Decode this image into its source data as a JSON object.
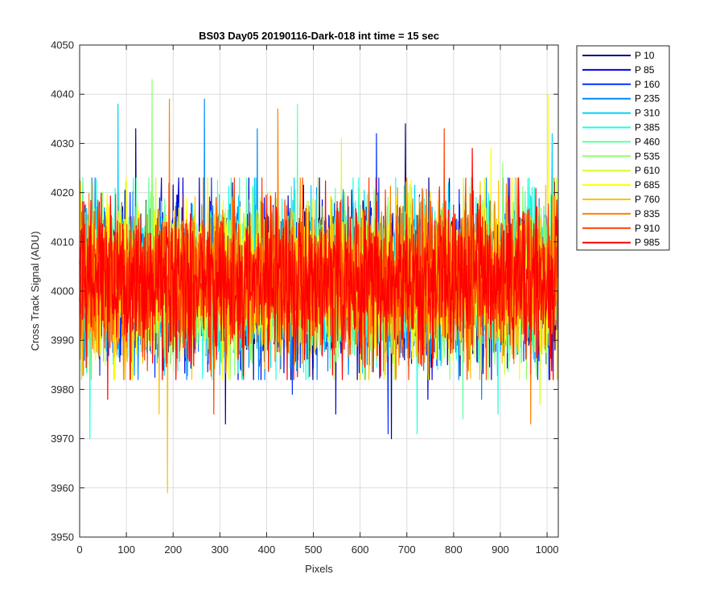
{
  "chart_data": {
    "type": "line",
    "title": "BS03 Day05 20190116-Dark-018 int time = 15 sec",
    "xlabel": "Pixels",
    "ylabel": "Cross Track Signal (ADU)",
    "xlim": [
      0,
      1024
    ],
    "ylim": [
      3950,
      4050
    ],
    "xticks": [
      0,
      100,
      200,
      300,
      400,
      500,
      600,
      700,
      800,
      900,
      1000
    ],
    "yticks": [
      3950,
      3960,
      3970,
      3980,
      3990,
      4000,
      4010,
      4020,
      4030,
      4040,
      4050
    ],
    "grid": true,
    "legend_position": "outside-top-right",
    "n_points": 1024,
    "baseline": 4002,
    "series": [
      {
        "name": "P 10",
        "color": "#000080",
        "sigma": 7.5,
        "spikes": [
          [
            120,
            4033
          ],
          [
            697,
            4034
          ],
          [
            312,
            3973
          ],
          [
            667,
            3970
          ]
        ]
      },
      {
        "name": "P 85",
        "color": "#0000d8",
        "sigma": 7.5,
        "spikes": [
          [
            548,
            3975
          ],
          [
            745,
            3978
          ]
        ]
      },
      {
        "name": "P 160",
        "color": "#0030ff",
        "sigma": 7.5,
        "spikes": [
          [
            635,
            4032
          ],
          [
            660,
            3971
          ],
          [
            455,
            3979
          ]
        ]
      },
      {
        "name": "P 235",
        "color": "#0088ff",
        "sigma": 7.5,
        "spikes": [
          [
            267,
            4039
          ],
          [
            380,
            4033
          ],
          [
            860,
            3978
          ]
        ]
      },
      {
        "name": "P 310",
        "color": "#00d0ff",
        "sigma": 7.5,
        "spikes": [
          [
            82,
            4038
          ],
          [
            1011,
            4032
          ]
        ]
      },
      {
        "name": "P 385",
        "color": "#20ffe0",
        "sigma": 7.5,
        "spikes": [
          [
            22,
            3970
          ],
          [
            722,
            3971
          ],
          [
            895,
            3975
          ]
        ]
      },
      {
        "name": "P 460",
        "color": "#60ffa0",
        "sigma": 7.5,
        "spikes": [
          [
            466,
            4038
          ],
          [
            820,
            3974
          ]
        ]
      },
      {
        "name": "P 535",
        "color": "#90ff70",
        "sigma": 7.5,
        "spikes": [
          [
            155,
            4043
          ],
          [
            905,
            4026
          ]
        ]
      },
      {
        "name": "P 610",
        "color": "#d0ff30",
        "sigma": 7.5,
        "spikes": [
          [
            560,
            4031
          ],
          [
            985,
            3977
          ]
        ]
      },
      {
        "name": "P 685",
        "color": "#ffff00",
        "sigma": 7.5,
        "spikes": [
          [
            1002,
            4040
          ],
          [
            880,
            4029
          ]
        ]
      },
      {
        "name": "P 760",
        "color": "#ffc000",
        "sigma": 7.5,
        "spikes": [
          [
            188,
            3959
          ],
          [
            170,
            3975
          ]
        ]
      },
      {
        "name": "P 835",
        "color": "#ff8000",
        "sigma": 7.5,
        "spikes": [
          [
            192,
            4039
          ],
          [
            424,
            4037
          ],
          [
            965,
            3973
          ]
        ]
      },
      {
        "name": "P 910",
        "color": "#ff4000",
        "sigma": 7.5,
        "spikes": [
          [
            287,
            3975
          ],
          [
            780,
            4033
          ]
        ]
      },
      {
        "name": "P 985",
        "color": "#ff0000",
        "sigma": 7.5,
        "spikes": [
          [
            60,
            3978
          ],
          [
            840,
            4029
          ]
        ]
      }
    ]
  }
}
